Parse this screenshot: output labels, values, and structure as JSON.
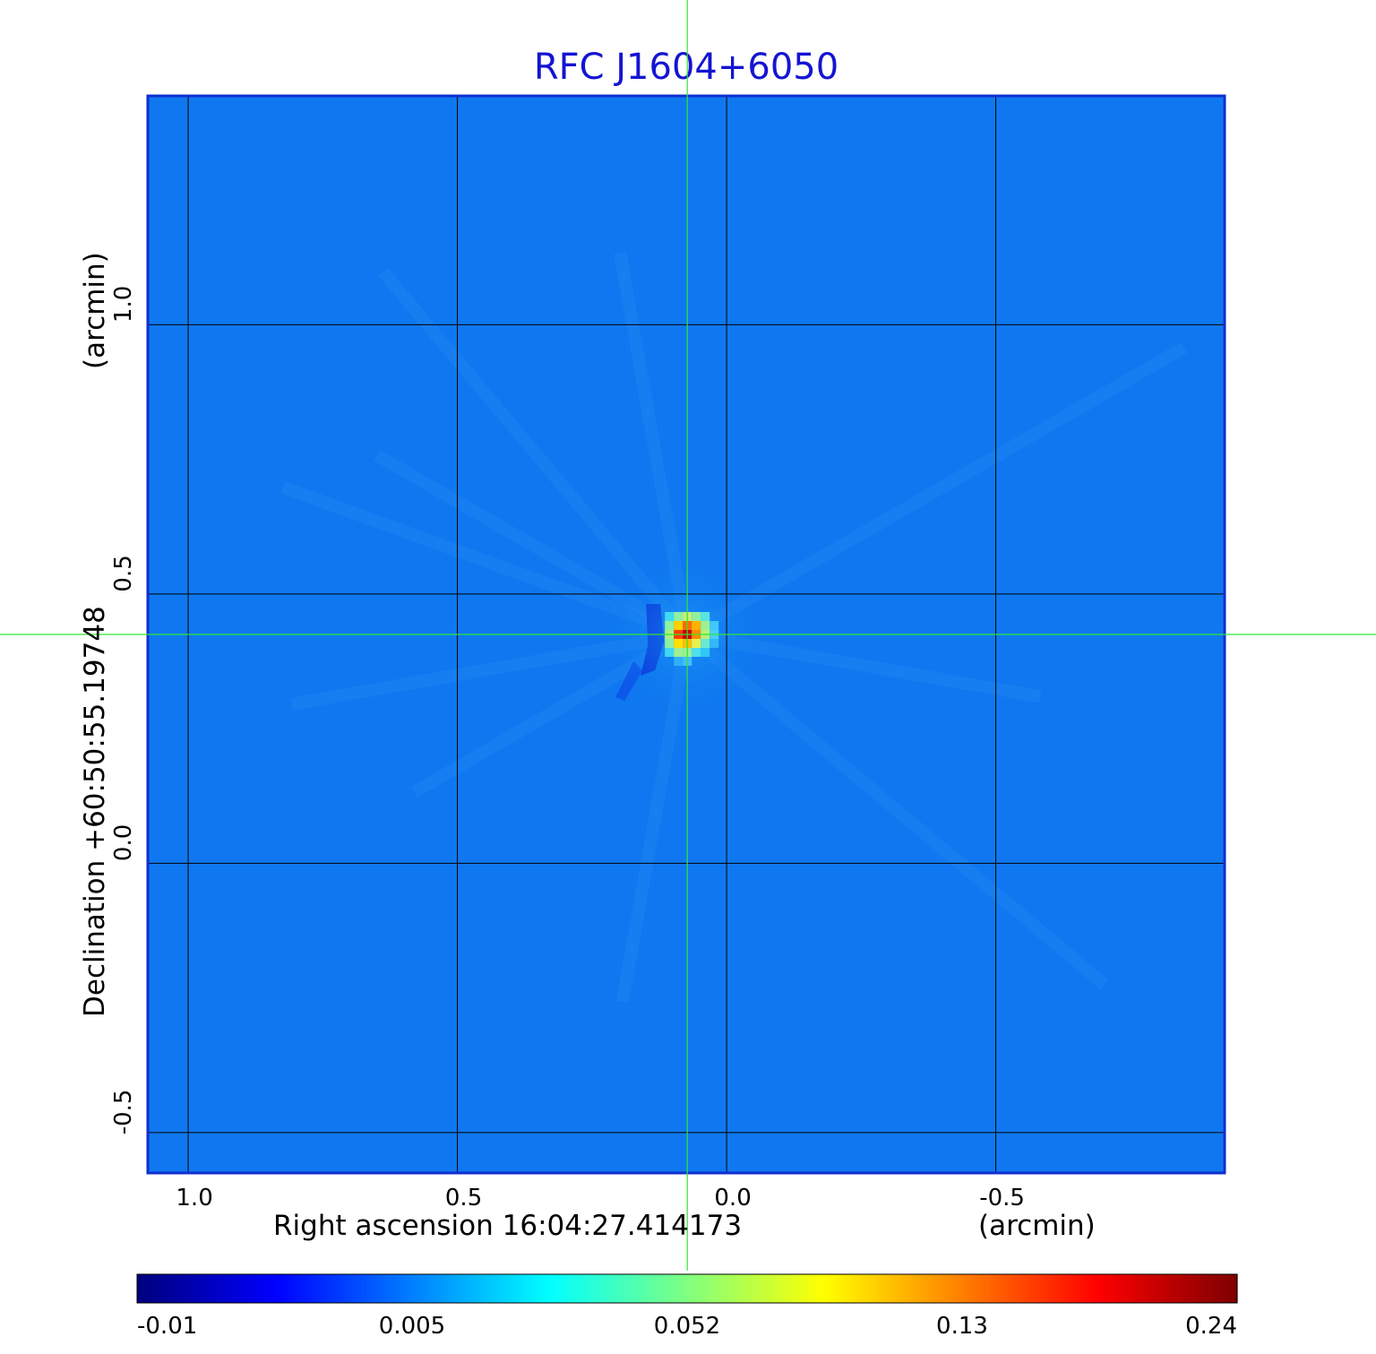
{
  "chart_data": {
    "type": "heatmap",
    "title": "RFC J1604+6050",
    "xlabel": "Right ascension  16:04:27.414173",
    "xunit": "(arcmin)",
    "ylabel": "Declination  +60:50:55.19748",
    "yunit": "(arcmin)",
    "xlim": [
      1.075,
      -0.925
    ],
    "ylim": [
      -0.575,
      1.425
    ],
    "x_ticks": [
      {
        "value": 1.0,
        "label": "1.0"
      },
      {
        "value": 0.5,
        "label": "0.5"
      },
      {
        "value": 0.0,
        "label": "0.0"
      },
      {
        "value": -0.5,
        "label": "-0.5"
      }
    ],
    "y_ticks": [
      {
        "value": -0.5,
        "label": "-0.5"
      },
      {
        "value": 0.0,
        "label": "0.0"
      },
      {
        "value": 0.5,
        "label": "0.5"
      },
      {
        "value": 1.0,
        "label": "1.0"
      }
    ],
    "grid": true,
    "crosshair": {
      "x": 0.073,
      "y": 0.425,
      "color": "#32e632"
    },
    "source_peak": {
      "x": 0.073,
      "y": 0.425,
      "value": 0.24
    },
    "colorbar": {
      "orientation": "horizontal",
      "position": "bottom",
      "tick_labels": [
        "-0.01",
        "0.005",
        "0.052",
        "0.13",
        "0.24"
      ],
      "min": -0.01,
      "max": 0.24,
      "colormap": "jet"
    },
    "colors": {
      "background_field": "#0f78f0",
      "frame": "#0f2fd0",
      "grid": "#000000",
      "title": "#1414d2"
    }
  }
}
